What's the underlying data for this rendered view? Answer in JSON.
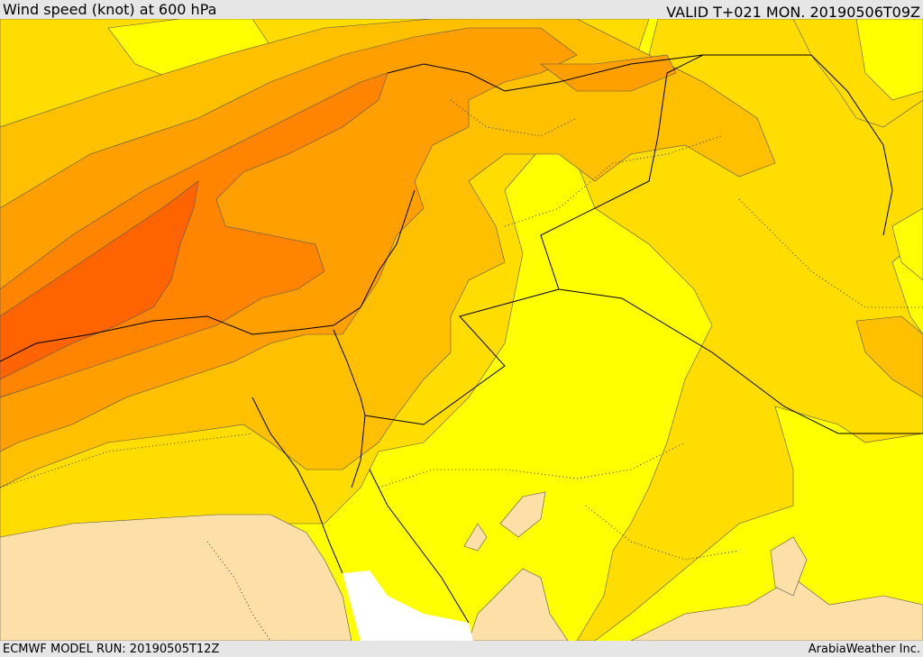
{
  "header": {
    "title": "Wind speed (knot) at 600 hPa",
    "valid": "VALID T+021 MON. 20190506T09Z"
  },
  "footer": {
    "model_run": "ECMWF MODEL RUN: 20190505T12Z",
    "credit": "ArabiaWeather Inc."
  },
  "colors": {
    "band_lowest": "#fde0a8",
    "band_low": "#ffff00",
    "band_mid": "#ffdd00",
    "band_mid_high": "#ffc000",
    "band_high": "#ffa000",
    "band_higher": "#ff8400",
    "band_highest": "#ff6400",
    "water_white": "#ffffff",
    "borders": "#000000"
  }
}
